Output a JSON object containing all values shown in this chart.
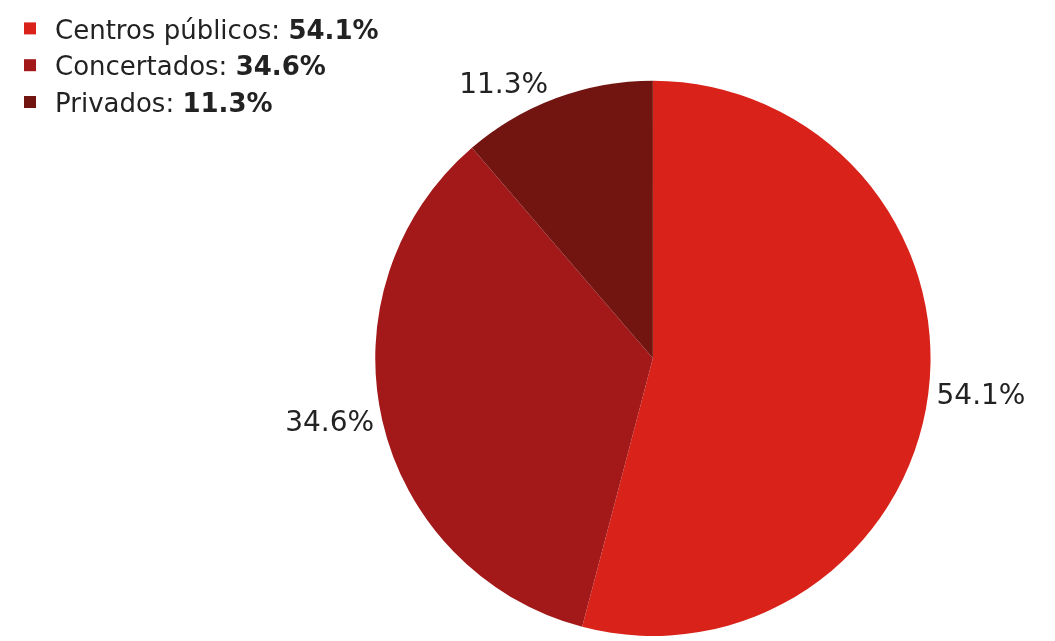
{
  "chart_data": {
    "type": "pie",
    "categories": [
      "Centros públicos",
      "Concertados",
      "Privados"
    ],
    "values": [
      54.1,
      34.6,
      11.3
    ],
    "colors": [
      "#d9231a",
      "#a3191a",
      "#721511"
    ],
    "value_labels": [
      "54.1%",
      "34.6%",
      "11.3%"
    ],
    "legend": "top left"
  }
}
